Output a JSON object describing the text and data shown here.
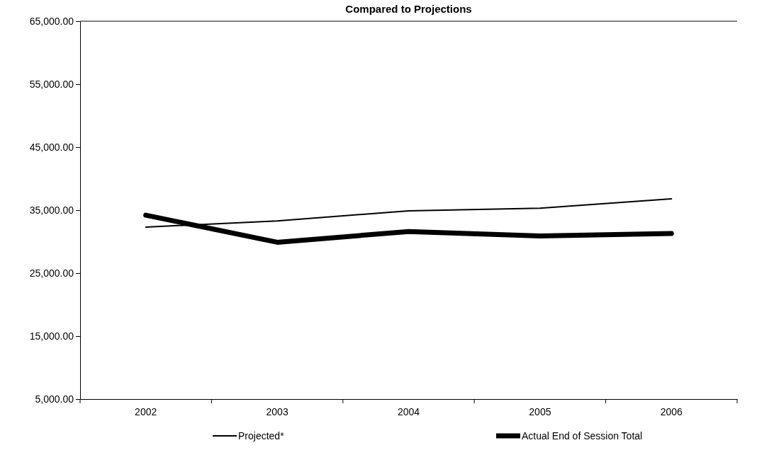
{
  "chart_data": {
    "type": "line",
    "title": "Compared to Projections",
    "categories": [
      "2002",
      "2003",
      "2004",
      "2005",
      "2006"
    ],
    "series": [
      {
        "name": "Projected*",
        "color": "#000000",
        "values": [
          32300,
          33300,
          34900,
          35300,
          36800
        ]
      },
      {
        "name": "Actual End of Session Total",
        "color": "#000000",
        "values": [
          34200,
          29900,
          31600,
          30900,
          31300
        ]
      }
    ],
    "ylim": [
      5000,
      65000
    ],
    "yticks": [
      {
        "value": 5000,
        "label": "5,000.00"
      },
      {
        "value": 15000,
        "label": "15,000.00"
      },
      {
        "value": 25000,
        "label": "25,000.00"
      },
      {
        "value": 35000,
        "label": "35,000.00"
      },
      {
        "value": 45000,
        "label": "45,000.00"
      },
      {
        "value": 55000,
        "label": "55,000.00"
      },
      {
        "value": 65000,
        "label": "65,000.00"
      }
    ],
    "grid": false,
    "legend": "bottom",
    "marker": "none",
    "line_style": "solid"
  }
}
